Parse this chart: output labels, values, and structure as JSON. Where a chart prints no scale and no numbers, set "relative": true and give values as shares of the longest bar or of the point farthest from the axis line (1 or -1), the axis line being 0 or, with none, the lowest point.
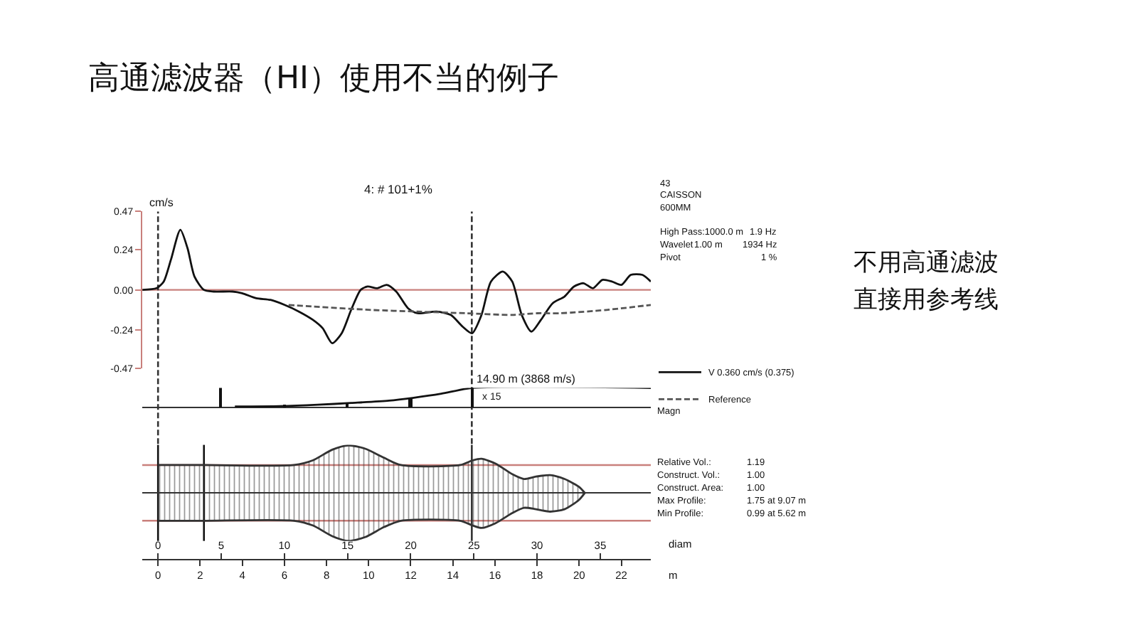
{
  "chart_data": [
    {
      "type": "line",
      "title": "高通滤波器（HI）使用不当的例子",
      "subtitle": "4: # 101+1%",
      "ylabel": "cm/s",
      "xlim": [
        -0.75,
        23.4
      ],
      "ylim": [
        -0.47,
        0.47
      ],
      "yticks": [
        0.47,
        0.24,
        {
          "value": 0,
          "label": "0.00"
        },
        -0.24,
        -0.47
      ],
      "tick_labels": "y",
      "legend": "right",
      "series": [
        {
          "name": "V 0.360 cm/s (0.375)",
          "color": "#111111",
          "line_style": "solid",
          "x": [
            -0.74,
            -0.07,
            0.27,
            0.61,
            1.06,
            1.4,
            1.73,
            2.18,
            2.64,
            3.54,
            3.99,
            4.66,
            5.34,
            6.01,
            6.69,
            7.36,
            7.82,
            8.27,
            8.72,
            9.17,
            9.62,
            9.95,
            10.41,
            10.86,
            11.31,
            11.87,
            12.32,
            13.22,
            13.9,
            14.46,
            14.91,
            15.36,
            15.81,
            16.37,
            16.82,
            17.27,
            17.73,
            18.18,
            18.74,
            19.3,
            19.75,
            20.2,
            20.65,
            21.1,
            21.55,
            22.0,
            22.45,
            23.0,
            23.4
          ],
          "values": [
            0,
            0.01,
            0.05,
            0.18,
            0.36,
            0.25,
            0.08,
            0,
            -0.01,
            -0.01,
            -0.02,
            -0.05,
            -0.06,
            -0.09,
            -0.13,
            -0.18,
            -0.23,
            -0.32,
            -0.26,
            -0.12,
            0,
            0.02,
            0.01,
            0.03,
            -0.01,
            -0.11,
            -0.14,
            -0.13,
            -0.15,
            -0.22,
            -0.26,
            -0.15,
            0.05,
            0.11,
            0.05,
            -0.15,
            -0.25,
            -0.18,
            -0.08,
            -0.04,
            0.02,
            0.04,
            0.01,
            0.06,
            0.05,
            0.03,
            0.09,
            0.09,
            0.05
          ]
        },
        {
          "name": "Reference",
          "color": "#555555",
          "line_style": "dashed",
          "x": [
            6.2,
            7.4,
            10.1,
            12.3,
            14.6,
            16.8,
            18.0,
            19.1,
            21.3,
            23.4
          ],
          "values": [
            -0.09,
            -0.1,
            -0.12,
            -0.13,
            -0.14,
            -0.15,
            -0.14,
            -0.14,
            -0.12,
            -0.09
          ]
        }
      ],
      "ref_lines": [
        {
          "axis": "y",
          "value": 0,
          "color": "#c9807c",
          "line_style": "solid"
        },
        {
          "axis": "x",
          "value": 0,
          "color": "#333333",
          "line_style": "dashed"
        },
        {
          "axis": "x",
          "value": 14.9,
          "label": "14.90 m (3868 m/s)",
          "color": "#333333",
          "line_style": "dashed"
        }
      ],
      "annotations": [
        "43",
        "CAISSON",
        "600MM",
        "High Pass:1000.0 m",
        "1.9 Hz",
        "Wavelet",
        "1.00 m",
        "1934 Hz",
        "Pivot",
        "1 %",
        "不用高通滤波",
        "直接用参考线"
      ]
    },
    {
      "type": "line",
      "relative": true,
      "xlim": [
        -0.75,
        23.4
      ],
      "tick_labels": false,
      "series": [
        {
          "color": "#111111",
          "x": [
            3.65,
            5.79,
            7.59,
            9.17,
            10.97,
            12.09,
            13.45,
            14.95,
            23.4
          ],
          "values": [
            0.05,
            0.07,
            0.14,
            0.23,
            0.35,
            0.49,
            0.7,
            1,
            1
          ]
        },
        {
          "type": "bar",
          "color": "#111111",
          "x": [
            3.0,
            6.0,
            9.0,
            12.0,
            14.95
          ],
          "values": [
            1,
            0.07,
            0.23,
            0.49,
            1
          ]
        }
      ],
      "annotations": [
        "x 15",
        "Magn"
      ]
    },
    {
      "type": "area",
      "relative": true,
      "xlim": [
        -0.75,
        23.4
      ],
      "xticks": [
        0,
        2,
        4,
        6,
        8,
        10,
        12,
        14,
        16,
        18,
        20,
        22
      ],
      "xlabel": "m",
      "x2lim": [
        -1.25,
        39.0
      ],
      "x2ticks": [
        0,
        5,
        10,
        15,
        20,
        25,
        30,
        35
      ],
      "x2label": "diam",
      "series": [
        {
          "color": "#333333",
          "x": [
            0,
            2.18,
            6.46,
            7.36,
            8.27,
            9.05,
            9.84,
            10.74,
            11.53,
            14.35,
            14.95,
            15.36,
            16.03,
            16.82,
            17.38,
            17.95,
            18.62,
            19.3,
            19.98,
            20.27
          ],
          "values": [
            0.58,
            0.58,
            0.58,
            0.68,
            0.9,
            0.99,
            0.92,
            0.73,
            0.58,
            0.58,
            0.68,
            0.71,
            0.61,
            0.39,
            0.29,
            0.34,
            0.37,
            0.29,
            0.13,
            0
          ]
        },
        {
          "color": "#333333",
          "x": [
            0,
            2.18,
            6.46,
            7.36,
            8.27,
            9.05,
            9.84,
            10.74,
            11.53,
            14.35,
            14.95,
            15.36,
            16.03,
            16.82,
            17.38,
            17.95,
            18.62,
            19.3,
            19.98,
            20.27
          ],
          "values": [
            -0.58,
            -0.58,
            -0.58,
            -0.68,
            -0.9,
            -1,
            -0.92,
            -0.71,
            -0.58,
            -0.58,
            -0.68,
            -0.73,
            -0.63,
            -0.42,
            -0.31,
            -0.34,
            -0.39,
            -0.34,
            -0.15,
            0
          ]
        }
      ],
      "ref_lines": [
        {
          "axis": "y",
          "value": 0.58,
          "color": "#c9807c",
          "line_style": "solid"
        },
        {
          "axis": "y",
          "value": -0.58,
          "color": "#c9807c",
          "line_style": "solid"
        },
        {
          "axis": "x",
          "value": 0,
          "color": "#111111",
          "line_style": "solid"
        },
        {
          "axis": "x",
          "value": 2.18,
          "color": "#111111",
          "line_style": "solid"
        },
        {
          "axis": "x",
          "value": 14.9,
          "color": "#333333",
          "line_style": "solid"
        }
      ],
      "annotations": [
        "Relative Vol.:",
        "1.19",
        "Construct. Vol.:",
        "1.00",
        "Construct. Area:",
        "1.00",
        "Max Profile:",
        "1.75 at 9.07 m",
        "Min Profile:",
        "0.99 at 5.62 m"
      ]
    }
  ]
}
